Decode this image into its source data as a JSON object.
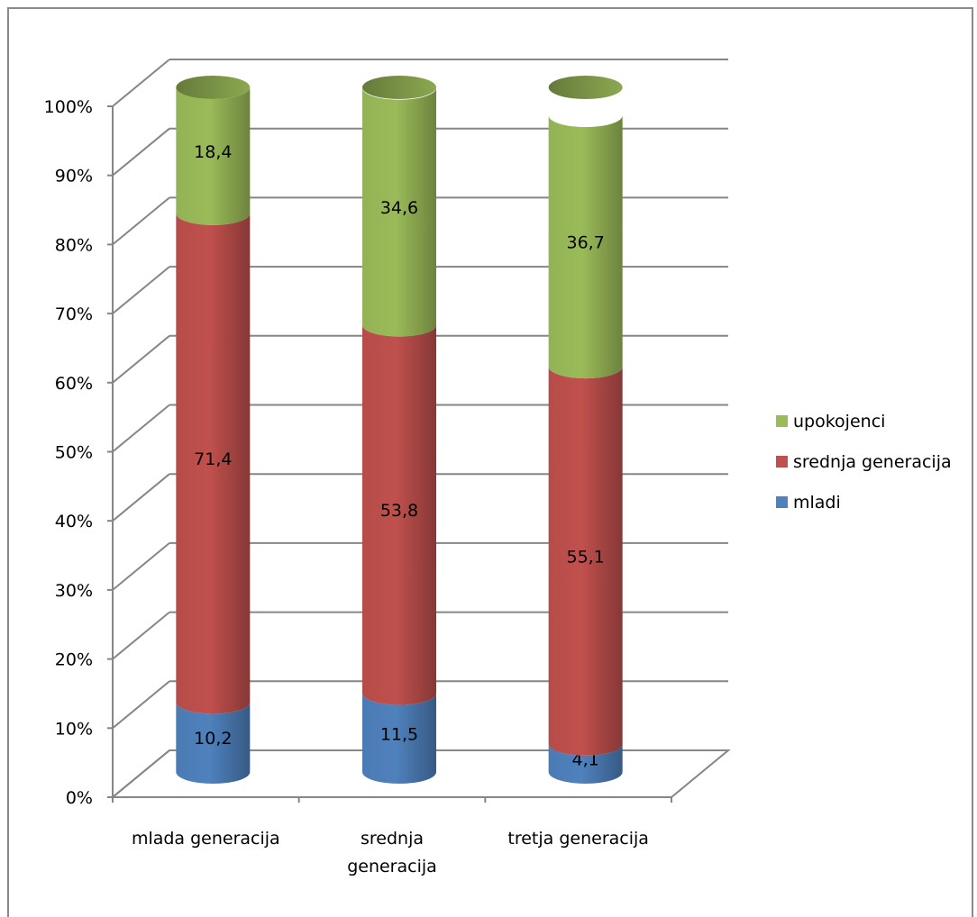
{
  "chart_data": {
    "type": "bar",
    "stacked": true,
    "percent": true,
    "style": "3d-cylinder",
    "categories": [
      [
        "mlada generacija"
      ],
      [
        "srednja",
        "generacija"
      ],
      [
        "tretja generacija"
      ]
    ],
    "series": [
      {
        "name": "mladi",
        "color": "#4f81bd",
        "values": [
          10.2,
          11.5,
          4.1
        ],
        "labels": [
          "10,2",
          "11,5",
          "4,1"
        ]
      },
      {
        "name": "srednja generacija",
        "color": "#c0504d",
        "values": [
          71.4,
          53.8,
          55.1
        ],
        "labels": [
          "71,4",
          "53,8",
          "55,1"
        ]
      },
      {
        "name": "upokojenci",
        "color": "#9bbb59",
        "values": [
          18.4,
          34.6,
          36.7
        ],
        "labels": [
          "18,4",
          "34,6",
          "36,7"
        ]
      }
    ],
    "y_ticks": [
      "0%",
      "10%",
      "20%",
      "30%",
      "40%",
      "50%",
      "60%",
      "70%",
      "80%",
      "90%",
      "100%"
    ],
    "ylim": [
      0,
      100
    ],
    "grid": true,
    "legend_position": "right",
    "legend_order": [
      "upokojenci",
      "srednja generacija",
      "mladi"
    ]
  }
}
